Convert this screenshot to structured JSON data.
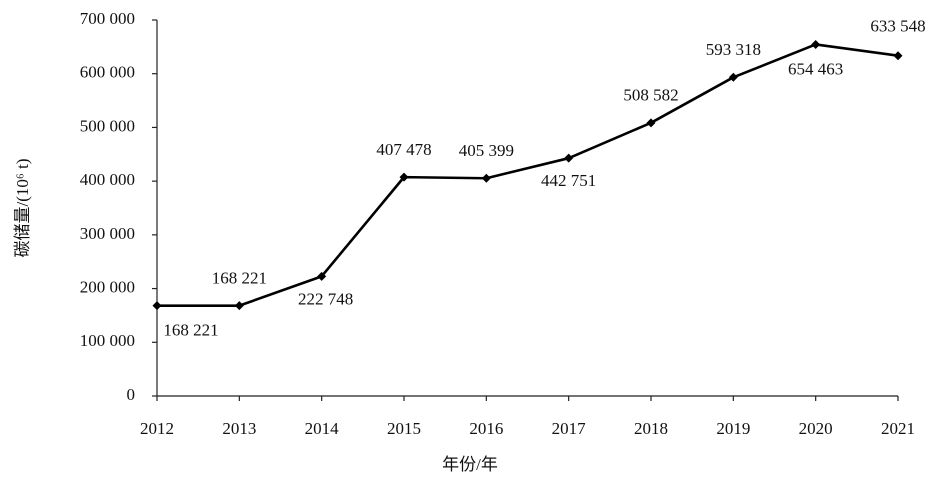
{
  "chart_data": {
    "type": "line",
    "x_label": "年份/年",
    "y_label": "碳储量/(10⁶ t)",
    "x": [
      2012,
      2013,
      2014,
      2015,
      2016,
      2017,
      2018,
      2019,
      2020,
      2021
    ],
    "xlim": [
      2012,
      2021
    ],
    "xticks": [
      2012,
      2013,
      2014,
      2015,
      2016,
      2017,
      2018,
      2019,
      2020,
      2021
    ],
    "values": [
      168221,
      168221,
      222748,
      407478,
      405399,
      442751,
      508582,
      593318,
      654463,
      633548
    ],
    "value_labels": [
      "168 221",
      "168 221",
      "222 748",
      "407 478",
      "405 399",
      "442 751",
      "508 582",
      "593 318",
      "654 463",
      "633 548"
    ],
    "color": "#000000",
    "ylim": [
      0,
      700000
    ],
    "yticks": [
      0,
      {
        "value": 100000,
        "label": "100 000"
      },
      {
        "value": 200000,
        "label": "200 000"
      },
      {
        "value": 300000,
        "label": "300 000"
      },
      {
        "value": 400000,
        "label": "400 000"
      },
      {
        "value": 500000,
        "label": "500 000"
      },
      {
        "value": 600000,
        "label": "600 000"
      },
      {
        "value": 700000,
        "label": "700 000"
      }
    ],
    "grid": false
  }
}
